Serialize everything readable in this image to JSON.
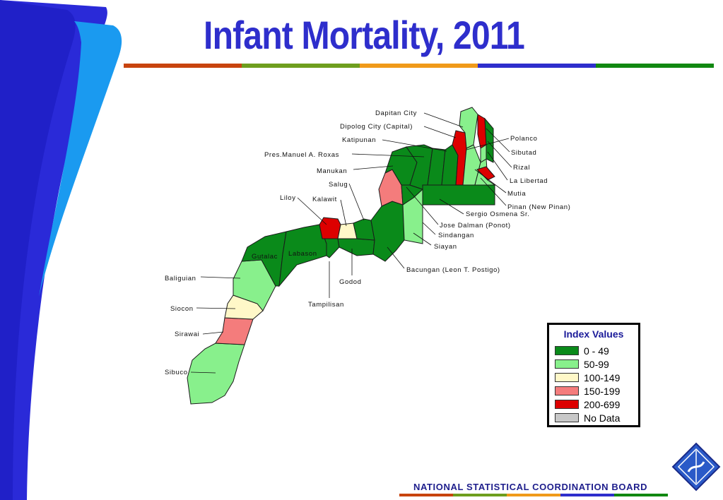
{
  "title": "Infant Mortality, 2011",
  "footer": "NATIONAL  STATISTICAL  COORDINATION  BOARD",
  "colors": {
    "class_0_49": "#0a8a1a",
    "class_50_99": "#88f08c",
    "class_100_149": "#fff8c8",
    "class_150_199": "#f47c7c",
    "class_200_699": "#dd0000",
    "no_data": "#c8c8c8",
    "title": "#2e2ecc",
    "rule": [
      "#c8440e",
      "#6e9e1e",
      "#f09a1a",
      "#2e2ecc",
      "#118811"
    ]
  },
  "legend": {
    "title": "Index Values",
    "items": [
      {
        "label": "0 - 49",
        "color": "#0a8a1a"
      },
      {
        "label": "50-99",
        "color": "#88f08c"
      },
      {
        "label": "100-149",
        "color": "#fff8c8"
      },
      {
        "label": "150-199",
        "color": "#f47c7c"
      },
      {
        "label": "200-699",
        "color": "#dd0000"
      },
      {
        "label": "No Data",
        "color": "#c8c8c8"
      }
    ]
  },
  "municipalities": [
    {
      "name": "Dapitan City",
      "class": "50-99"
    },
    {
      "name": "Dipolog City (Capital)",
      "class": "200-699"
    },
    {
      "name": "Katipunan",
      "class": "0-49"
    },
    {
      "name": "Pres.Manuel A. Roxas",
      "class": "0-49"
    },
    {
      "name": "Manukan",
      "class": "0-49"
    },
    {
      "name": "Salug",
      "class": "150-199"
    },
    {
      "name": "Liloy",
      "class": "200-699"
    },
    {
      "name": "Kalawit",
      "class": "100-149"
    },
    {
      "name": "Gutalac",
      "class": "0-49"
    },
    {
      "name": "Labason",
      "class": "0-49"
    },
    {
      "name": "Baliguian",
      "class": "50-99"
    },
    {
      "name": "Siocon",
      "class": "100-149"
    },
    {
      "name": "Sirawai",
      "class": "150-199"
    },
    {
      "name": "Sibuco",
      "class": "50-99"
    },
    {
      "name": "Godod",
      "class": "0-49"
    },
    {
      "name": "Tampilisan",
      "class": "0-49"
    },
    {
      "name": "Bacungan (Leon T. Postigo)",
      "class": "0-49"
    },
    {
      "name": "Siayan",
      "class": "50-99"
    },
    {
      "name": "Sindangan",
      "class": "0-49"
    },
    {
      "name": "Jose Dalman (Ponot)",
      "class": "0-49"
    },
    {
      "name": "Sergio Osmena Sr.",
      "class": "0-49"
    },
    {
      "name": "Pinan (New Pinan)",
      "class": "200-699"
    },
    {
      "name": "Mutia",
      "class": "50-99"
    },
    {
      "name": "La Libertad",
      "class": "0-49"
    },
    {
      "name": "Rizal",
      "class": "200-699"
    },
    {
      "name": "Sibutad",
      "class": "0-49"
    },
    {
      "name": "Polanco",
      "class": "50-99"
    }
  ]
}
